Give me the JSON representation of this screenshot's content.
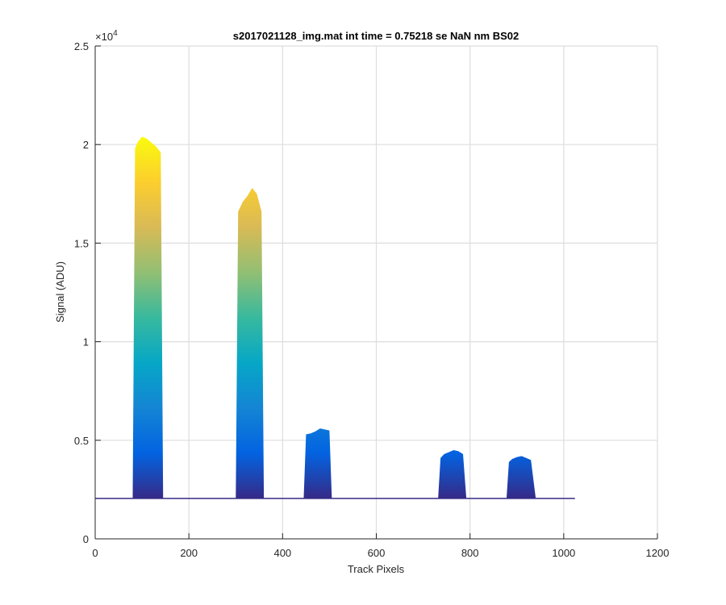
{
  "chart_data": {
    "type": "area",
    "title": "s2017021128_img.mat int time = 0.75218 se  NaN nm BS02",
    "xlabel": "Track Pixels",
    "ylabel": "Signal (ADU)",
    "xlim": [
      0,
      1200
    ],
    "ylim": [
      0,
      25000
    ],
    "xticks": [
      0,
      200,
      400,
      600,
      800,
      1000,
      1200
    ],
    "xtick_labels": [
      "0",
      "200",
      "400",
      "600",
      "800",
      "1000",
      "1200"
    ],
    "yticks": [
      0,
      5000,
      10000,
      15000,
      20000,
      25000
    ],
    "ytick_labels": [
      "0",
      "0.5",
      "1",
      "1.5",
      "2",
      "2.5"
    ],
    "y_exponent_label": "×10",
    "y_exponent_power": "4",
    "grid": true,
    "baseline": 2050,
    "baseline_x_range": [
      0,
      1024
    ],
    "colormap": [
      "#352a87",
      "#0363e1",
      "#1485d4",
      "#06a7c6",
      "#38b99e",
      "#92bf73",
      "#d9ba56",
      "#fcce2e",
      "#f9fb0e"
    ],
    "series": [
      {
        "x": [
          80,
          85,
          90,
          100,
          110,
          120,
          130,
          140,
          145
        ],
        "y": [
          2100,
          19800,
          20100,
          20400,
          20300,
          20100,
          19900,
          19600,
          2100
        ]
      },
      {
        "x": [
          300,
          305,
          315,
          325,
          335,
          345,
          355,
          360
        ],
        "y": [
          2100,
          16600,
          17100,
          17400,
          17800,
          17500,
          16600,
          2100
        ]
      },
      {
        "x": [
          445,
          450,
          460,
          470,
          480,
          490,
          500,
          505
        ],
        "y": [
          2100,
          5300,
          5350,
          5450,
          5600,
          5550,
          5500,
          2100
        ]
      },
      {
        "x": [
          732,
          737,
          745,
          755,
          765,
          775,
          785,
          792
        ],
        "y": [
          2100,
          4100,
          4300,
          4400,
          4500,
          4450,
          4300,
          2100
        ]
      },
      {
        "x": [
          878,
          883,
          890,
          900,
          910,
          920,
          930,
          940
        ],
        "y": [
          2100,
          3900,
          4050,
          4150,
          4200,
          4100,
          4000,
          2100
        ]
      }
    ]
  }
}
